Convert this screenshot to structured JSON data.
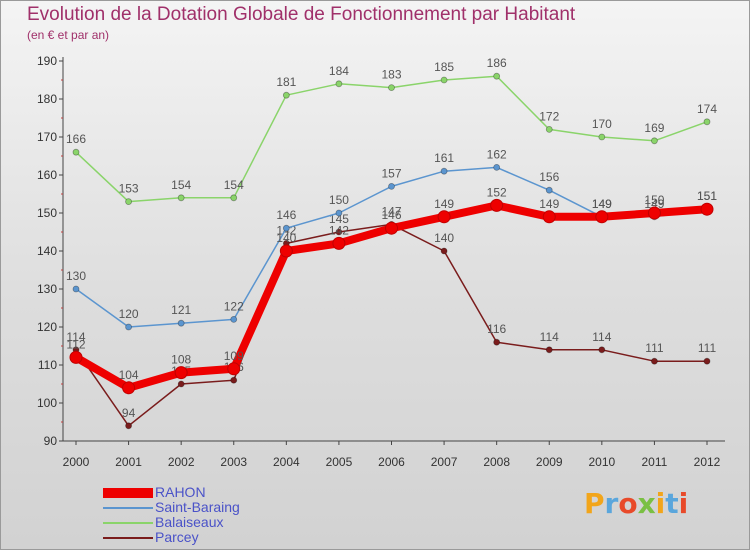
{
  "header": {
    "title": "Evolution de la Dotation Globale de Fonctionnement par Habitant",
    "subtitle": "(en € et par an)"
  },
  "brand": {
    "text": "Proxiti"
  },
  "chart_data": {
    "type": "line",
    "title": "Evolution de la Dotation Globale de Fonctionnement par Habitant",
    "subtitle": "(en € et par an)",
    "xlabel": "",
    "ylabel": "",
    "ylim": [
      90,
      190
    ],
    "y_ticks": [
      90,
      100,
      110,
      120,
      130,
      140,
      150,
      160,
      170,
      180,
      190
    ],
    "categories": [
      "2000",
      "2001",
      "2002",
      "2003",
      "2004",
      "2005",
      "2006",
      "2007",
      "2008",
      "2009",
      "2010",
      "2011",
      "2012"
    ],
    "legend_position": "bottom-left",
    "series": [
      {
        "name": "Parcey",
        "color": "#7a1c1c",
        "values": [
          114,
          94,
          105,
          106,
          142,
          145,
          147,
          140,
          116,
          114,
          114,
          111,
          111
        ],
        "labels": [
          "114",
          "94",
          "105",
          "106",
          "142",
          "145",
          "147",
          "140",
          "116",
          "114",
          "114",
          "111",
          "111"
        ]
      },
      {
        "name": "Balaiseaux",
        "color": "#8ad46a",
        "values": [
          166,
          153,
          154,
          154,
          181,
          184,
          183,
          185,
          186,
          172,
          170,
          169,
          174
        ],
        "labels": [
          "166",
          "153",
          "154",
          "154",
          "181",
          "184",
          "183",
          "185",
          "186",
          "172",
          "170",
          "169",
          "174"
        ]
      },
      {
        "name": "Saint-Baraing",
        "color": "#5b95cf",
        "values": [
          130,
          120,
          121,
          122,
          146,
          150,
          157,
          161,
          162,
          156,
          149,
          149,
          151
        ],
        "labels": [
          "130",
          "120",
          "121",
          "122",
          "146",
          "150",
          "157",
          "161",
          "162",
          "156",
          "149",
          "149",
          "151"
        ]
      },
      {
        "name": "RAHON",
        "color": "#ee0000",
        "values": [
          112,
          104,
          108,
          109,
          140,
          142,
          146,
          149,
          152,
          149,
          149,
          150,
          151
        ],
        "labels": [
          "112",
          "104",
          "108",
          "109",
          "140",
          "142",
          "146",
          "149",
          "152",
          "149",
          "149",
          "150",
          "151"
        ]
      }
    ],
    "legend_order": [
      "RAHON",
      "Saint-Baraing",
      "Balaiseaux",
      "Parcey"
    ]
  }
}
